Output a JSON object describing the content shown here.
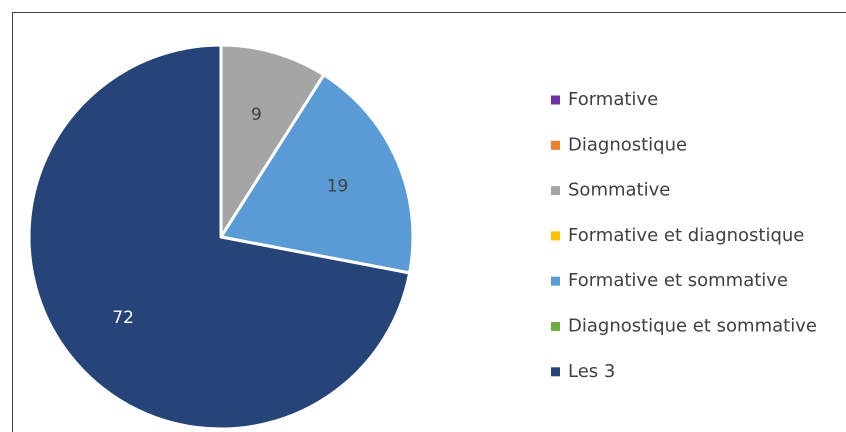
{
  "chart_data": {
    "type": "pie",
    "categories": [
      "Formative",
      "Diagnostique",
      "Sommative",
      "Formative et diagnostique",
      "Formative et sommative",
      "Diagnostique et sommative",
      "Les 3"
    ],
    "values": [
      0,
      0,
      9,
      0,
      19,
      0,
      72
    ],
    "colors": [
      "#7030a0",
      "#ed7d31",
      "#a5a5a5",
      "#ffc000",
      "#5b9bd5",
      "#70ad47",
      "#264478"
    ],
    "label_colors": [
      "#404040",
      "#404040",
      "#404040",
      "#404040",
      "#404040",
      "#ffffff",
      "#ffffff"
    ],
    "legend": "right"
  }
}
